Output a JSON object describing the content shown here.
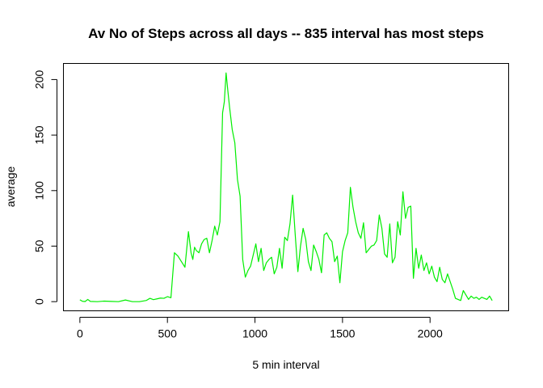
{
  "chart_data": {
    "type": "line",
    "title": "Av No of Steps across all days -- 835 interval has most steps",
    "xlabel": "5 min interval",
    "ylabel": "average",
    "xlim": [
      -94,
      2449
    ],
    "ylim": [
      -8.25,
      214.5
    ],
    "x_ticks": [
      0,
      500,
      1000,
      1500,
      2000
    ],
    "y_ticks": [
      0,
      50,
      100,
      150,
      200
    ],
    "grid": false,
    "legend": "none",
    "series": [
      {
        "color": "#00ee00",
        "x": [
          0,
          15,
          30,
          45,
          60,
          100,
          140,
          180,
          220,
          260,
          300,
          340,
          380,
          400,
          420,
          440,
          460,
          480,
          500,
          520,
          540,
          560,
          580,
          600,
          620,
          635,
          645,
          655,
          665,
          680,
          695,
          710,
          725,
          740,
          755,
          770,
          785,
          800,
          815,
          825,
          835,
          845,
          855,
          870,
          885,
          900,
          915,
          930,
          945,
          960,
          975,
          990,
          1005,
          1020,
          1035,
          1050,
          1065,
          1080,
          1095,
          1110,
          1125,
          1140,
          1155,
          1170,
          1185,
          1200,
          1215,
          1230,
          1245,
          1260,
          1275,
          1290,
          1305,
          1320,
          1335,
          1350,
          1365,
          1380,
          1395,
          1410,
          1425,
          1440,
          1455,
          1470,
          1485,
          1500,
          1515,
          1530,
          1545,
          1560,
          1575,
          1590,
          1605,
          1620,
          1635,
          1650,
          1665,
          1680,
          1695,
          1710,
          1725,
          1740,
          1755,
          1770,
          1785,
          1800,
          1815,
          1830,
          1845,
          1860,
          1875,
          1890,
          1905,
          1920,
          1935,
          1950,
          1965,
          1980,
          1995,
          2010,
          2025,
          2040,
          2055,
          2070,
          2085,
          2100,
          2115,
          2130,
          2145,
          2160,
          2175,
          2190,
          2205,
          2220,
          2235,
          2250,
          2265,
          2280,
          2295,
          2310,
          2325,
          2340,
          2355
        ],
        "y": [
          1.7,
          0.3,
          0.1,
          2.0,
          0.2,
          0.0,
          0.5,
          0.2,
          0.0,
          1.5,
          0.0,
          0.0,
          1.1,
          3.0,
          1.8,
          2.5,
          3.2,
          3.0,
          4.5,
          3.5,
          44,
          41,
          36,
          31,
          63,
          44,
          38,
          49,
          46,
          44,
          52,
          56,
          57,
          44,
          55,
          68,
          60,
          72,
          170,
          180,
          206,
          190,
          175,
          155,
          143,
          110,
          95,
          38,
          22,
          28,
          32,
          42,
          52,
          36,
          48,
          28,
          35,
          38,
          40,
          25,
          31,
          48,
          30,
          58,
          55,
          70,
          96,
          60,
          27,
          50,
          66,
          56,
          36,
          28,
          51,
          45,
          38,
          26,
          60,
          62,
          57,
          54,
          36,
          41,
          17,
          45,
          55,
          62,
          103,
          85,
          72,
          62,
          57,
          71,
          44,
          47,
          50,
          51,
          55,
          78,
          66,
          43,
          40,
          70,
          35,
          40,
          72,
          60,
          99,
          75,
          85,
          86,
          21,
          48,
          30,
          42,
          28,
          35,
          25,
          32,
          22,
          18,
          31,
          20,
          17,
          25,
          18,
          11,
          3,
          2,
          1,
          10,
          6,
          2,
          5,
          3,
          4,
          2,
          4,
          3,
          2,
          5,
          1
        ]
      }
    ]
  }
}
